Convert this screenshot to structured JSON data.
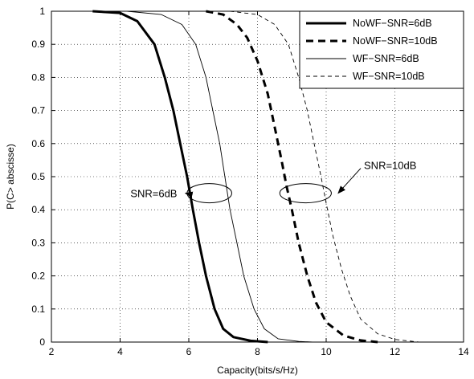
{
  "chart_data": {
    "type": "line",
    "xlabel": "Capacity(bits/s/Hz)",
    "ylabel": "P(C> abscisse)",
    "xlim": [
      2,
      14
    ],
    "ylim": [
      0,
      1
    ],
    "xticks": [
      "2",
      "4",
      "6",
      "8",
      "10",
      "12",
      "14"
    ],
    "yticks": [
      "0",
      "0.1",
      "0.2",
      "0.3",
      "0.4",
      "0.5",
      "0.6",
      "0.7",
      "0.8",
      "0.9",
      "1"
    ],
    "grid": true,
    "legend_position": "top-right",
    "series": [
      {
        "name": "NoWF−SNR=6dB",
        "style": "solid-thick",
        "points": [
          [
            3.2,
            1.0
          ],
          [
            4.0,
            0.995
          ],
          [
            4.5,
            0.97
          ],
          [
            5.0,
            0.9
          ],
          [
            5.3,
            0.8
          ],
          [
            5.55,
            0.7
          ],
          [
            5.75,
            0.6
          ],
          [
            5.95,
            0.5
          ],
          [
            6.12,
            0.4
          ],
          [
            6.3,
            0.3
          ],
          [
            6.5,
            0.2
          ],
          [
            6.75,
            0.1
          ],
          [
            7.0,
            0.04
          ],
          [
            7.3,
            0.015
          ],
          [
            7.8,
            0.004
          ],
          [
            8.3,
            0.0
          ]
        ]
      },
      {
        "name": "NoWF−SNR=10dB",
        "style": "dashed-thick",
        "points": [
          [
            6.5,
            1.0
          ],
          [
            7.0,
            0.99
          ],
          [
            7.4,
            0.96
          ],
          [
            7.7,
            0.92
          ],
          [
            8.0,
            0.85
          ],
          [
            8.3,
            0.75
          ],
          [
            8.5,
            0.65
          ],
          [
            8.7,
            0.55
          ],
          [
            8.85,
            0.47
          ],
          [
            9.0,
            0.4
          ],
          [
            9.2,
            0.3
          ],
          [
            9.45,
            0.2
          ],
          [
            9.7,
            0.12
          ],
          [
            10.0,
            0.06
          ],
          [
            10.5,
            0.02
          ],
          [
            11.0,
            0.005
          ],
          [
            11.5,
            0.0
          ]
        ]
      },
      {
        "name": "WF−SNR=6dB",
        "style": "solid-thin",
        "points": [
          [
            4.2,
            1.0
          ],
          [
            5.2,
            0.99
          ],
          [
            5.8,
            0.96
          ],
          [
            6.2,
            0.9
          ],
          [
            6.5,
            0.8
          ],
          [
            6.7,
            0.7
          ],
          [
            6.9,
            0.6
          ],
          [
            7.05,
            0.5
          ],
          [
            7.2,
            0.4
          ],
          [
            7.4,
            0.3
          ],
          [
            7.6,
            0.2
          ],
          [
            7.9,
            0.1
          ],
          [
            8.2,
            0.04
          ],
          [
            8.6,
            0.01
          ],
          [
            9.2,
            0.002
          ],
          [
            9.6,
            0.0
          ]
        ]
      },
      {
        "name": "WF−SNR=10dB",
        "style": "dashed-thin",
        "points": [
          [
            7.2,
            1.0
          ],
          [
            8.0,
            0.99
          ],
          [
            8.5,
            0.96
          ],
          [
            8.9,
            0.9
          ],
          [
            9.2,
            0.8
          ],
          [
            9.45,
            0.7
          ],
          [
            9.65,
            0.6
          ],
          [
            9.85,
            0.5
          ],
          [
            10.0,
            0.42
          ],
          [
            10.2,
            0.32
          ],
          [
            10.45,
            0.22
          ],
          [
            10.7,
            0.14
          ],
          [
            11.0,
            0.07
          ],
          [
            11.5,
            0.025
          ],
          [
            12.0,
            0.008
          ],
          [
            12.7,
            0.0
          ],
          [
            13.3,
            0.0
          ]
        ]
      }
    ],
    "annotations": [
      {
        "text": "SNR=6dB",
        "anchor": "left",
        "text_x": 4.3,
        "text_y": 0.45,
        "arrow_to": [
          5.9,
          0.45
        ],
        "ellipse_center": [
          6.6,
          0.45
        ],
        "ellipse_rx": 0.65
      },
      {
        "text": "SNR=10dB",
        "anchor": "right",
        "text_x": 11.1,
        "text_y": 0.535,
        "arrow_to": [
          10.35,
          0.45
        ],
        "ellipse_center": [
          9.4,
          0.45
        ],
        "ellipse_rx": 0.75
      }
    ]
  }
}
